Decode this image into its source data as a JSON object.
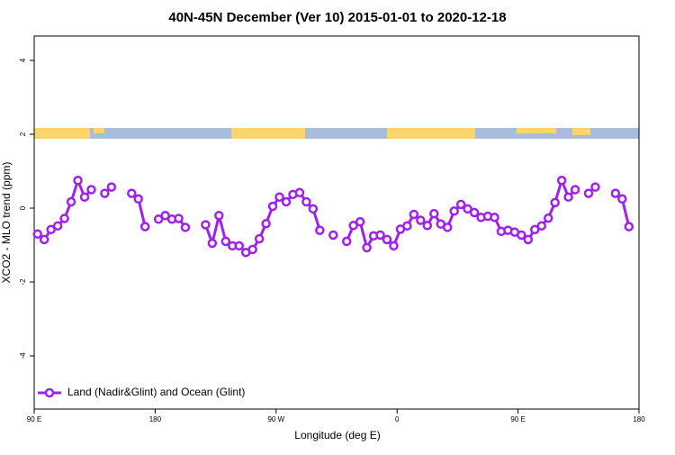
{
  "chart_data": {
    "type": "line",
    "title": "40N-45N December (Ver 10)   2015-01-01 to 2020-12-18",
    "xlabel": "Longitude (deg E)",
    "ylabel": "XCO2 - MLO trend (ppm)",
    "xlim": [
      90,
      540
    ],
    "ylim": [
      -5.44,
      4.66
    ],
    "xticks": [
      {
        "value": 90,
        "label": "90 E"
      },
      180,
      {
        "value": 270,
        "label": "90 W"
      },
      {
        "value": 360,
        "label": "0"
      },
      {
        "value": 450,
        "label": "90 E"
      },
      {
        "value": 540,
        "label": "180"
      }
    ],
    "yticks": [
      -4,
      -2,
      0,
      2,
      4
    ],
    "legend": "bottom-left",
    "x": [
      92.5,
      97.5,
      102.5,
      107.5,
      112.5,
      117.5,
      122.5,
      127.5,
      132.5,
      137.5,
      142.5,
      147.5,
      152.5,
      157.5,
      162.5,
      167.5,
      172.5,
      177.5,
      182.5,
      187.5,
      192.5,
      197.5,
      202.5,
      207.5,
      212.5,
      217.5,
      222.5,
      227.5,
      232.5,
      237.5,
      242.5,
      247.5,
      252.5,
      257.5,
      262.5,
      267.5,
      272.5,
      277.5,
      282.5,
      287.5,
      292.5,
      297.5,
      302.5,
      307.5,
      312.5,
      317.5,
      322.5,
      327.5,
      332.5,
      337.5,
      342.5,
      347.5,
      352.5,
      357.5,
      362.5,
      367.5,
      372.5,
      377.5,
      382.5,
      387.5,
      392.5,
      397.5,
      402.5,
      407.5,
      412.5,
      417.5,
      422.5,
      427.5,
      432.5,
      437.5,
      442.5,
      447.5,
      452.5,
      457.5,
      462.5,
      467.5,
      472.5,
      477.5,
      482.5,
      487.5,
      492.5,
      497.5,
      502.5,
      507.5,
      512.5,
      517.5,
      522.5,
      527.5,
      532.5
    ],
    "series": [
      {
        "name": "Land (Nadir&Glint) and Ocean (Glint)",
        "color": "#a020f0",
        "values": [
          -0.7,
          -0.85,
          -0.58,
          -0.48,
          -0.28,
          0.17,
          0.75,
          0.3,
          0.5,
          null,
          0.4,
          0.57,
          null,
          null,
          0.4,
          0.25,
          -0.5,
          null,
          -0.3,
          -0.2,
          -0.3,
          -0.28,
          -0.52,
          null,
          null,
          -0.45,
          -0.95,
          -0.2,
          -0.9,
          -1.02,
          -1.02,
          -1.2,
          -1.12,
          -0.83,
          -0.42,
          0.05,
          0.3,
          0.17,
          0.37,
          0.42,
          0.17,
          -0.02,
          -0.6,
          null,
          -0.73,
          null,
          -0.9,
          -0.47,
          -0.37,
          -1.07,
          -0.75,
          -0.73,
          -0.85,
          -1.02,
          -0.57,
          -0.48,
          -0.17,
          -0.33,
          -0.47,
          -0.15,
          -0.43,
          -0.52,
          -0.08,
          0.1,
          -0.02,
          -0.12,
          -0.25,
          -0.22,
          -0.25,
          -0.63,
          -0.6,
          -0.65,
          -0.73,
          -0.85,
          -0.58,
          -0.48,
          -0.27,
          0.15,
          0.75,
          0.3,
          0.5,
          null,
          0.4,
          0.57,
          null,
          null,
          0.4,
          0.25,
          -0.5
        ]
      }
    ]
  }
}
